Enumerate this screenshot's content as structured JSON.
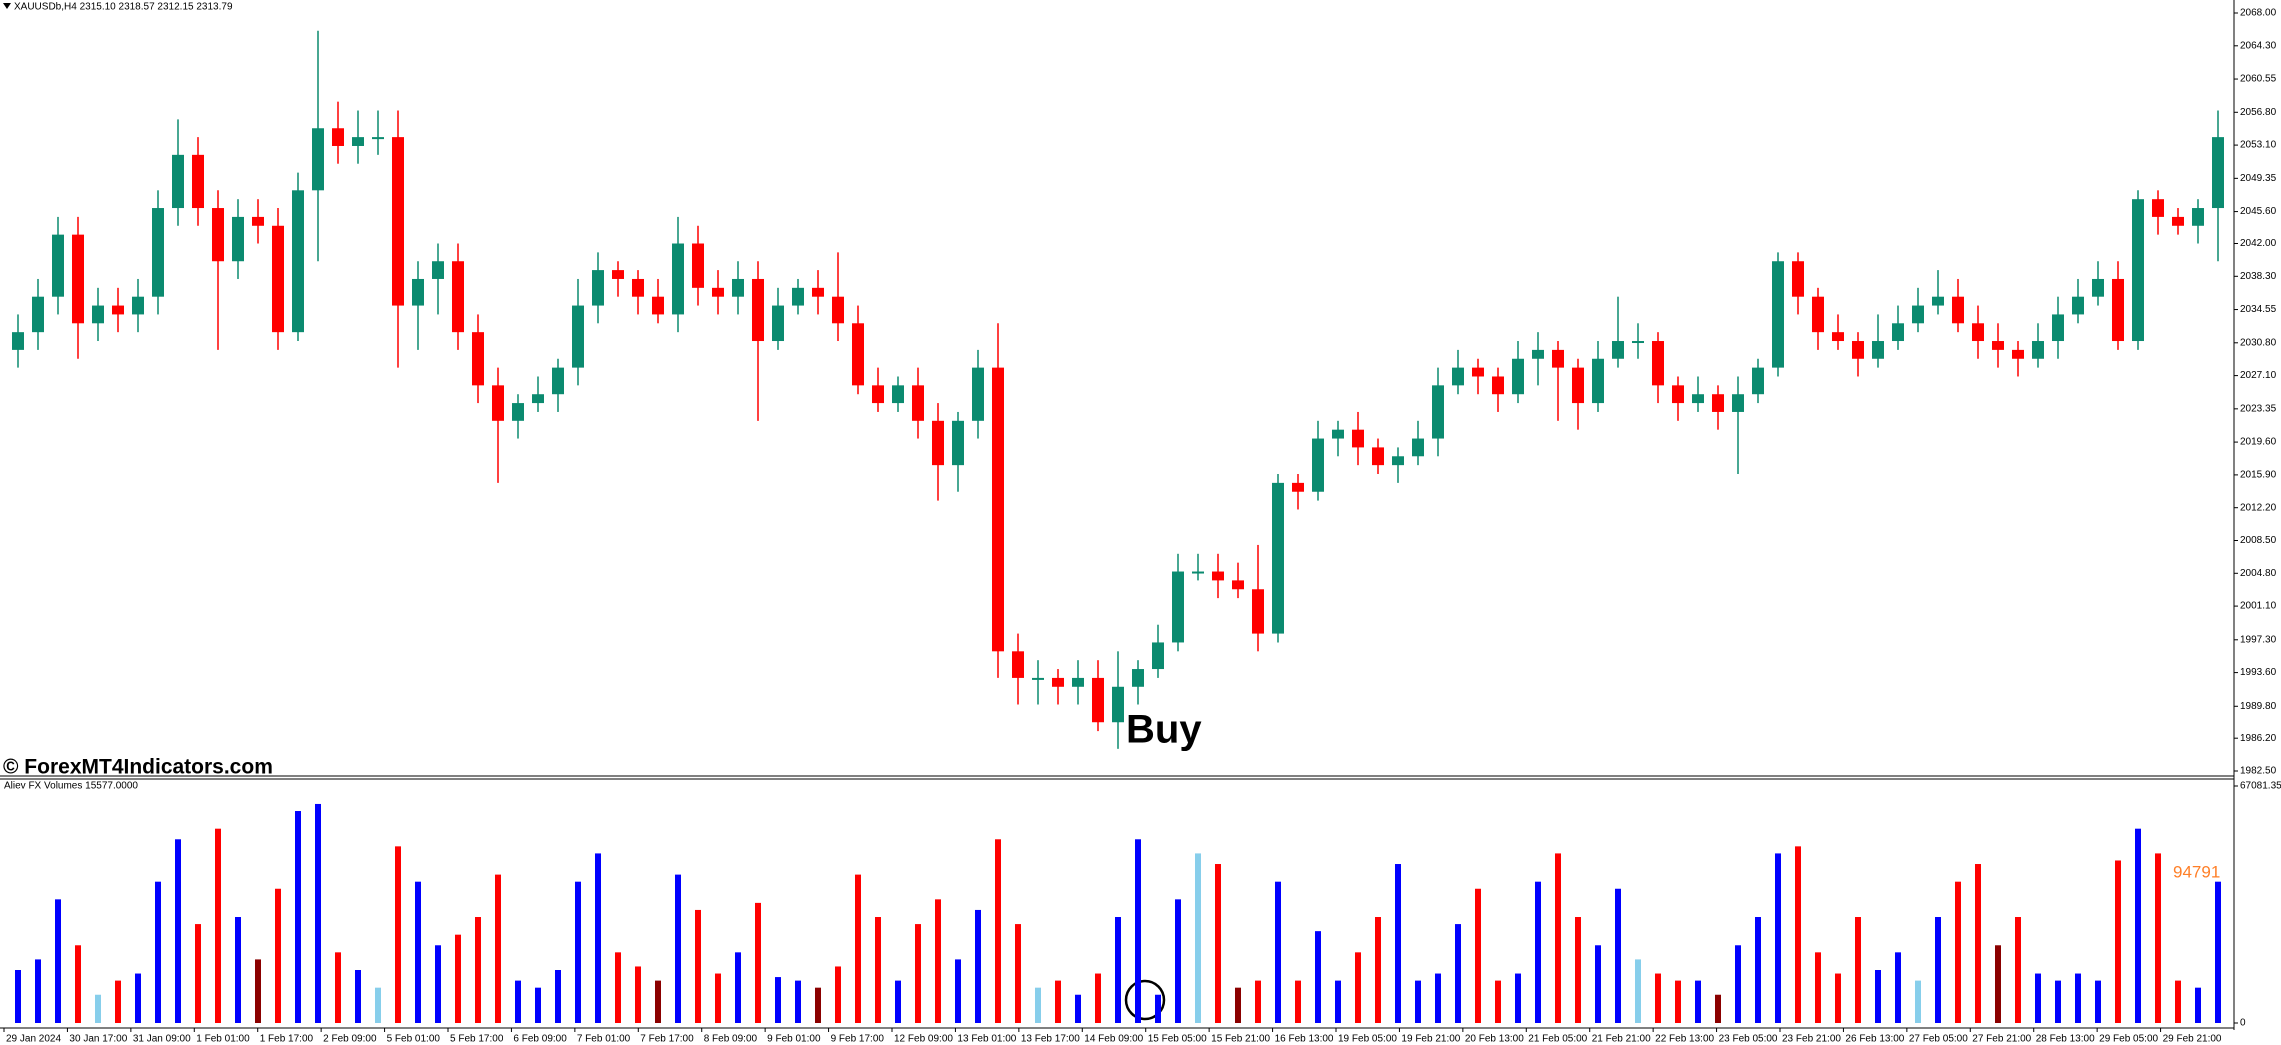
{
  "watermark": "© ForexMT4Indicators.com",
  "chart_data": [
    {
      "type": "candlestick",
      "title": "XAUUSDb,H4  2315.10 2318.57 2312.15 2313.79",
      "annotation": "Buy",
      "up_color": "#0b8a6f",
      "down_color": "#ff0000",
      "open": [
        2030,
        2032,
        2036,
        2043,
        2033,
        2035,
        2034,
        2036,
        2046,
        2052,
        2046,
        2040,
        2045,
        2044,
        2032,
        2048,
        2055,
        2053,
        2054,
        2054,
        2035,
        2038,
        2040,
        2032,
        2026,
        2022,
        2024,
        2025,
        2028,
        2035,
        2039,
        2038,
        2036,
        2034,
        2042,
        2037,
        2036,
        2038,
        2031,
        2035,
        2037,
        2036,
        2033,
        2026,
        2024,
        2026,
        2022,
        2017,
        2022,
        2028,
        1996,
        1993,
        1993,
        1992,
        1993,
        1988,
        1992,
        1994,
        1997,
        2005,
        2005,
        2004,
        2003,
        1998,
        2015,
        2014,
        2020,
        2021,
        2019,
        2017,
        2018,
        2020,
        2026,
        2028,
        2027,
        2025,
        2029,
        2030,
        2028,
        2024,
        2029,
        2031,
        2031,
        2026,
        2024,
        2025,
        2023,
        2025,
        2028,
        2040,
        2036,
        2032,
        2031,
        2029,
        2031,
        2033,
        2035,
        2036,
        2033,
        2031,
        2030,
        2029,
        2031,
        2034,
        2036,
        2038,
        2031,
        2047,
        2045,
        2044,
        2046
      ],
      "high": [
        2034,
        2038,
        2045,
        2045,
        2037,
        2037,
        2038,
        2048,
        2056,
        2054,
        2048,
        2047,
        2047,
        2046,
        2050,
        2066,
        2058,
        2057,
        2057,
        2057,
        2040,
        2042,
        2042,
        2034,
        2028,
        2025,
        2027,
        2029,
        2038,
        2041,
        2040,
        2039,
        2038,
        2045,
        2044,
        2039,
        2040,
        2040,
        2037,
        2038,
        2039,
        2041,
        2035,
        2028,
        2027,
        2028,
        2024,
        2023,
        2030,
        2033,
        1998,
        1995,
        1994,
        1995,
        1995,
        1996,
        1995,
        1999,
        2007,
        2007,
        2007,
        2006,
        2008,
        2016,
        2016,
        2022,
        2022,
        2023,
        2020,
        2019,
        2022,
        2028,
        2030,
        2029,
        2028,
        2031,
        2032,
        2031,
        2029,
        2031,
        2036,
        2033,
        2032,
        2027,
        2027,
        2026,
        2027,
        2029,
        2041,
        2041,
        2037,
        2034,
        2032,
        2034,
        2035,
        2037,
        2039,
        2038,
        2035,
        2033,
        2031,
        2033,
        2036,
        2038,
        2040,
        2040,
        2048,
        2048,
        2046,
        2047,
        2057
      ],
      "low": [
        2028,
        2030,
        2034,
        2029,
        2031,
        2032,
        2032,
        2034,
        2044,
        2044,
        2030,
        2038,
        2042,
        2030,
        2031,
        2040,
        2051,
        2051,
        2052,
        2028,
        2030,
        2034,
        2030,
        2024,
        2015,
        2020,
        2023,
        2023,
        2026,
        2033,
        2036,
        2034,
        2033,
        2032,
        2035,
        2034,
        2034,
        2022,
        2030,
        2034,
        2034,
        2031,
        2025,
        2023,
        2023,
        2020,
        2013,
        2014,
        2020,
        1993,
        1990,
        1990,
        1990,
        1990,
        1987,
        1985,
        1990,
        1993,
        1996,
        2004,
        2002,
        2002,
        1996,
        1997,
        2012,
        2013,
        2018,
        2017,
        2016,
        2015,
        2017,
        2018,
        2025,
        2025,
        2023,
        2024,
        2026,
        2022,
        2021,
        2023,
        2028,
        2029,
        2024,
        2022,
        2023,
        2021,
        2016,
        2024,
        2027,
        2034,
        2030,
        2030,
        2027,
        2028,
        2030,
        2032,
        2034,
        2032,
        2029,
        2028,
        2027,
        2028,
        2029,
        2033,
        2035,
        2030,
        2030,
        2043,
        2043,
        2042,
        2040
      ],
      "close": [
        2032,
        2036,
        2043,
        2033,
        2035,
        2034,
        2036,
        2046,
        2052,
        2046,
        2040,
        2045,
        2044,
        2032,
        2048,
        2055,
        2053,
        2054,
        2054,
        2035,
        2038,
        2040,
        2032,
        2026,
        2022,
        2024,
        2025,
        2028,
        2035,
        2039,
        2038,
        2036,
        2034,
        2042,
        2037,
        2036,
        2038,
        2031,
        2035,
        2037,
        2036,
        2033,
        2026,
        2024,
        2026,
        2022,
        2017,
        2022,
        2028,
        1996,
        1993,
        1993,
        1992,
        1993,
        1988,
        1992,
        1994,
        1997,
        2005,
        2005,
        2004,
        2003,
        1998,
        2015,
        2014,
        2020,
        2021,
        2019,
        2017,
        2018,
        2020,
        2026,
        2028,
        2027,
        2025,
        2029,
        2030,
        2028,
        2024,
        2029,
        2031,
        2031,
        2026,
        2024,
        2025,
        2023,
        2025,
        2028,
        2040,
        2036,
        2032,
        2031,
        2029,
        2031,
        2033,
        2035,
        2036,
        2033,
        2031,
        2030,
        2029,
        2031,
        2034,
        2036,
        2038,
        2031,
        2047,
        2045,
        2044,
        2046,
        2054
      ],
      "ylim": [
        1982.5,
        2068
      ],
      "yticks": [
        {
          "value": 2068,
          "label": "2068.00"
        },
        {
          "value": 2064.3,
          "label": "2064.30"
        },
        {
          "value": 2060.55,
          "label": "2060.55"
        },
        {
          "value": 2056.8,
          "label": "2056.80"
        },
        {
          "value": 2053.1,
          "label": "2053.10"
        },
        {
          "value": 2049.35,
          "label": "2049.35"
        },
        {
          "value": 2045.6,
          "label": "2045.60"
        },
        {
          "value": 2042,
          "label": "2042.00"
        },
        {
          "value": 2038.3,
          "label": "2038.30"
        },
        {
          "value": 2034.55,
          "label": "2034.55"
        },
        {
          "value": 2030.8,
          "label": "2030.80"
        },
        {
          "value": 2027.1,
          "label": "2027.10"
        },
        {
          "value": 2023.35,
          "label": "2023.35"
        },
        {
          "value": 2019.6,
          "label": "2019.60"
        },
        {
          "value": 2015.9,
          "label": "2015.90"
        },
        {
          "value": 2012.2,
          "label": "2012.20"
        },
        {
          "value": 2008.5,
          "label": "2008.50"
        },
        {
          "value": 2004.8,
          "label": "2004.80"
        },
        {
          "value": 2001.1,
          "label": "2001.10"
        },
        {
          "value": 1997.3,
          "label": "1997.30"
        },
        {
          "value": 1993.6,
          "label": "1993.60"
        },
        {
          "value": 1989.8,
          "label": "1989.80"
        },
        {
          "value": 1986.2,
          "label": "1986.20"
        },
        {
          "value": 1982.5,
          "label": "1982.50"
        }
      ]
    },
    {
      "type": "bar",
      "title": "Aliev FX Volumes 15577.0000",
      "last_value": 94791,
      "values": [
        15000,
        18000,
        35000,
        22000,
        8000,
        12000,
        14000,
        40000,
        52000,
        28000,
        55000,
        30000,
        18000,
        38000,
        60000,
        62000,
        20000,
        15000,
        10000,
        50000,
        40000,
        22000,
        25000,
        30000,
        42000,
        12000,
        10000,
        15000,
        40000,
        48000,
        20000,
        16000,
        12000,
        42000,
        32000,
        14000,
        20000,
        34000,
        13000,
        12000,
        10000,
        16000,
        42000,
        30000,
        12000,
        28000,
        35000,
        18000,
        32000,
        52000,
        28000,
        10000,
        12000,
        8000,
        14000,
        30000,
        52000,
        8000,
        35000,
        48000,
        45000,
        10000,
        12000,
        40000,
        12000,
        26000,
        12000,
        20000,
        30000,
        45000,
        12000,
        14000,
        28000,
        38000,
        12000,
        14000,
        40000,
        48000,
        30000,
        22000,
        38000,
        18000,
        14000,
        12000,
        12000,
        8000,
        22000,
        30000,
        48000,
        50000,
        20000,
        14000,
        30000,
        15000,
        20000,
        12000,
        30000,
        40000,
        45000,
        22000,
        30000,
        14000,
        12000,
        14000,
        12000,
        46000,
        55000,
        48000,
        12000,
        10000,
        40000
      ],
      "colors": [
        "#0000ff",
        "#0000ff",
        "#0000ff",
        "#ff0000",
        "#87ceeb",
        "#ff0000",
        "#0000ff",
        "#0000ff",
        "#0000ff",
        "#ff0000",
        "#ff0000",
        "#0000ff",
        "#8b0000",
        "#ff0000",
        "#0000ff",
        "#0000ff",
        "#ff0000",
        "#0000ff",
        "#87ceeb",
        "#ff0000",
        "#0000ff",
        "#0000ff",
        "#ff0000",
        "#ff0000",
        "#ff0000",
        "#0000ff",
        "#0000ff",
        "#0000ff",
        "#0000ff",
        "#0000ff",
        "#ff0000",
        "#ff0000",
        "#8b0000",
        "#0000ff",
        "#ff0000",
        "#ff0000",
        "#0000ff",
        "#ff0000",
        "#0000ff",
        "#0000ff",
        "#8b0000",
        "#ff0000",
        "#ff0000",
        "#ff0000",
        "#0000ff",
        "#ff0000",
        "#ff0000",
        "#0000ff",
        "#0000ff",
        "#ff0000",
        "#ff0000",
        "#87ceeb",
        "#ff0000",
        "#0000ff",
        "#ff0000",
        "#0000ff",
        "#0000ff",
        "#0000ff",
        "#0000ff",
        "#87ceeb",
        "#ff0000",
        "#8b0000",
        "#ff0000",
        "#0000ff",
        "#ff0000",
        "#0000ff",
        "#0000ff",
        "#ff0000",
        "#ff0000",
        "#0000ff",
        "#0000ff",
        "#0000ff",
        "#0000ff",
        "#ff0000",
        "#ff0000",
        "#0000ff",
        "#0000ff",
        "#ff0000",
        "#ff0000",
        "#0000ff",
        "#0000ff",
        "#87ceeb",
        "#ff0000",
        "#ff0000",
        "#0000ff",
        "#8b0000",
        "#0000ff",
        "#0000ff",
        "#0000ff",
        "#ff0000",
        "#ff0000",
        "#ff0000",
        "#ff0000",
        "#0000ff",
        "#0000ff",
        "#87ceeb",
        "#0000ff",
        "#ff0000",
        "#ff0000",
        "#8b0000",
        "#ff0000",
        "#0000ff",
        "#0000ff",
        "#0000ff",
        "#0000ff",
        "#ff0000",
        "#0000ff",
        "#ff0000",
        "#ff0000",
        "#0000ff",
        "#0000ff"
      ],
      "ylim": [
        0,
        67081.35
      ],
      "yticks": [
        67081.35,
        0
      ],
      "time_labels": [
        "29 Jan 2024",
        "30 Jan 17:00",
        "31 Jan 09:00",
        "1 Feb 01:00",
        "1 Feb 17:00",
        "2 Feb 09:00",
        "5 Feb 01:00",
        "5 Feb 17:00",
        "6 Feb 09:00",
        "7 Feb 01:00",
        "7 Feb 17:00",
        "8 Feb 09:00",
        "9 Feb 01:00",
        "9 Feb 17:00",
        "12 Feb 09:00",
        "13 Feb 01:00",
        "13 Feb 17:00",
        "14 Feb 09:00",
        "15 Feb 05:00",
        "15 Feb 21:00",
        "16 Feb 13:00",
        "19 Feb 05:00",
        "19 Feb 21:00",
        "20 Feb 13:00",
        "21 Feb 05:00",
        "21 Feb 21:00",
        "22 Feb 13:00",
        "23 Feb 05:00",
        "23 Feb 21:00",
        "26 Feb 13:00",
        "27 Feb 05:00",
        "27 Feb 21:00",
        "28 Feb 13:00",
        "29 Feb 05:00",
        "29 Feb 21:00"
      ]
    }
  ]
}
